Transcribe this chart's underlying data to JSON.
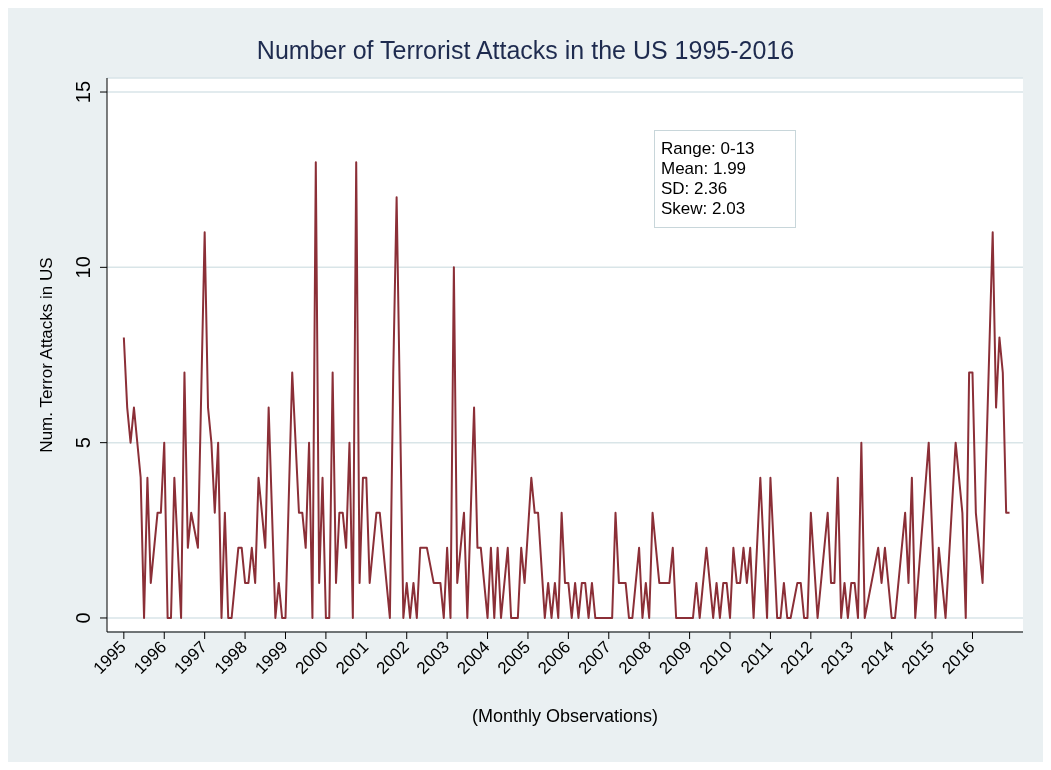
{
  "chart_data": {
    "type": "line",
    "title": "Number of Terrorist Attacks in the US 1995-2016",
    "xlabel": "(Monthly Observations)",
    "ylabel": "Num. Terror Attacks in US",
    "annotations": [
      "Range: 0-13",
      "Mean: 1.99",
      "SD: 2.36",
      "Skew: 2.03"
    ],
    "series": [
      {
        "color": "#8b2f37",
        "x": [
          "1995-01",
          "1995-02",
          "1995-03",
          "1995-04",
          "1995-06",
          "1995-07",
          "1995-08",
          "1995-09",
          "1995-11",
          "1995-12",
          "1996-01",
          "1996-02",
          "1996-03",
          "1996-04",
          "1996-06",
          "1996-07",
          "1996-08",
          "1996-09",
          "1996-11",
          "1997-01",
          "1997-02",
          "1997-03",
          "1997-04",
          "1997-05",
          "1997-06",
          "1997-07",
          "1997-08",
          "1997-09",
          "1997-10",
          "1997-11",
          "1997-12",
          "1998-01",
          "1998-02",
          "1998-03",
          "1998-04",
          "1998-05",
          "1998-07",
          "1998-08",
          "1998-10",
          "1998-11",
          "1998-12",
          "1999-01",
          "1999-03",
          "1999-05",
          "1999-06",
          "1999-07",
          "1999-08",
          "1999-09",
          "1999-10",
          "1999-11",
          "1999-12",
          "2000-01",
          "2000-02",
          "2000-03",
          "2000-04",
          "2000-05",
          "2000-06",
          "2000-07",
          "2000-08",
          "2000-09",
          "2000-10",
          "2000-11",
          "2000-12",
          "2001-01",
          "2001-02",
          "2001-04",
          "2001-05",
          "2001-08",
          "2001-09",
          "2001-10",
          "2001-12",
          "2002-01",
          "2002-02",
          "2002-03",
          "2002-04",
          "2002-05",
          "2002-07",
          "2002-09",
          "2002-11",
          "2002-12",
          "2003-01",
          "2003-02",
          "2003-03",
          "2003-04",
          "2003-05",
          "2003-06",
          "2003-07",
          "2003-09",
          "2003-10",
          "2003-11",
          "2004-01",
          "2004-02",
          "2004-03",
          "2004-04",
          "2004-05",
          "2004-07",
          "2004-08",
          "2004-10",
          "2004-11",
          "2004-12",
          "2005-02",
          "2005-03",
          "2005-04",
          "2005-06",
          "2005-07",
          "2005-08",
          "2005-09",
          "2005-10",
          "2005-11",
          "2005-12",
          "2006-01",
          "2006-02",
          "2006-03",
          "2006-04",
          "2006-05",
          "2006-06",
          "2006-07",
          "2006-08",
          "2006-09",
          "2007-02",
          "2007-03",
          "2007-04",
          "2007-06",
          "2007-07",
          "2007-08",
          "2007-10",
          "2007-11",
          "2007-12",
          "2008-01",
          "2008-02",
          "2008-04",
          "2008-06",
          "2008-07",
          "2008-08",
          "2008-09",
          "2009-02",
          "2009-03",
          "2009-04",
          "2009-06",
          "2009-08",
          "2009-09",
          "2009-10",
          "2009-11",
          "2009-12",
          "2010-01",
          "2010-02",
          "2010-03",
          "2010-04",
          "2010-05",
          "2010-06",
          "2010-07",
          "2010-08",
          "2010-10",
          "2010-12",
          "2011-01",
          "2011-03",
          "2011-04",
          "2011-05",
          "2011-06",
          "2011-07",
          "2011-09",
          "2011-10",
          "2011-11",
          "2011-12",
          "2012-01",
          "2012-03",
          "2012-06",
          "2012-07",
          "2012-08",
          "2012-09",
          "2012-10",
          "2012-11",
          "2012-12",
          "2013-01",
          "2013-02",
          "2013-03",
          "2013-04",
          "2013-05",
          "2013-09",
          "2013-10",
          "2013-11",
          "2014-01",
          "2014-02",
          "2014-05",
          "2014-06",
          "2014-07",
          "2014-08",
          "2014-12",
          "2015-02",
          "2015-03",
          "2015-05",
          "2015-08",
          "2015-10",
          "2015-11",
          "2015-12",
          "2016-01",
          "2016-02",
          "2016-04",
          "2016-07",
          "2016-08",
          "2016-09",
          "2016-10",
          "2016-11",
          "2016-12"
        ],
        "values": [
          8,
          6,
          5,
          6,
          4,
          0,
          4,
          1,
          3,
          3,
          5,
          0,
          0,
          4,
          0,
          7,
          2,
          3,
          2,
          11,
          6,
          5,
          3,
          5,
          0,
          3,
          0,
          0,
          1,
          2,
          2,
          1,
          1,
          2,
          1,
          4,
          2,
          6,
          0,
          1,
          0,
          0,
          7,
          3,
          3,
          2,
          5,
          0,
          13,
          1,
          4,
          0,
          0,
          7,
          1,
          3,
          3,
          2,
          5,
          0,
          13,
          1,
          4,
          4,
          1,
          3,
          3,
          0,
          7,
          12,
          0,
          1,
          0,
          1,
          0,
          2,
          2,
          1,
          1,
          0,
          2,
          0,
          10,
          1,
          2,
          3,
          0,
          6,
          2,
          2,
          0,
          2,
          0,
          2,
          0,
          2,
          0,
          0,
          2,
          1,
          4,
          3,
          3,
          0,
          1,
          0,
          1,
          0,
          3,
          1,
          1,
          0,
          1,
          0,
          1,
          1,
          0,
          1,
          0,
          0,
          3,
          1,
          1,
          0,
          0,
          2,
          0,
          1,
          0,
          3,
          1,
          1,
          1,
          2,
          0,
          0,
          1,
          0,
          2,
          0,
          1,
          0,
          1,
          1,
          0,
          2,
          1,
          1,
          2,
          1,
          2,
          0,
          4,
          0,
          4,
          0,
          0,
          1,
          0,
          0,
          1,
          1,
          0,
          0,
          3,
          0,
          3,
          1,
          1,
          4,
          0,
          1,
          0,
          1,
          1,
          0,
          5,
          0,
          2,
          1,
          2,
          0,
          0,
          3,
          1,
          4,
          0,
          5,
          0,
          2,
          0,
          5,
          3,
          0,
          7,
          7,
          3,
          1,
          11,
          6,
          8,
          7,
          3,
          3
        ]
      }
    ],
    "xlim": [
      "1994-08",
      "2017-04"
    ],
    "xticks": [
      "1995",
      "1996",
      "1997",
      "1998",
      "1999",
      "2000",
      "2001",
      "2002",
      "2003",
      "2004",
      "2005",
      "2006",
      "2007",
      "2008",
      "2009",
      "2010",
      "2011",
      "2012",
      "2013",
      "2014",
      "2015",
      "2016"
    ],
    "ylim": [
      -0.4,
      15.4
    ],
    "yticks": [
      0,
      5,
      10,
      15
    ],
    "grid": "y"
  }
}
